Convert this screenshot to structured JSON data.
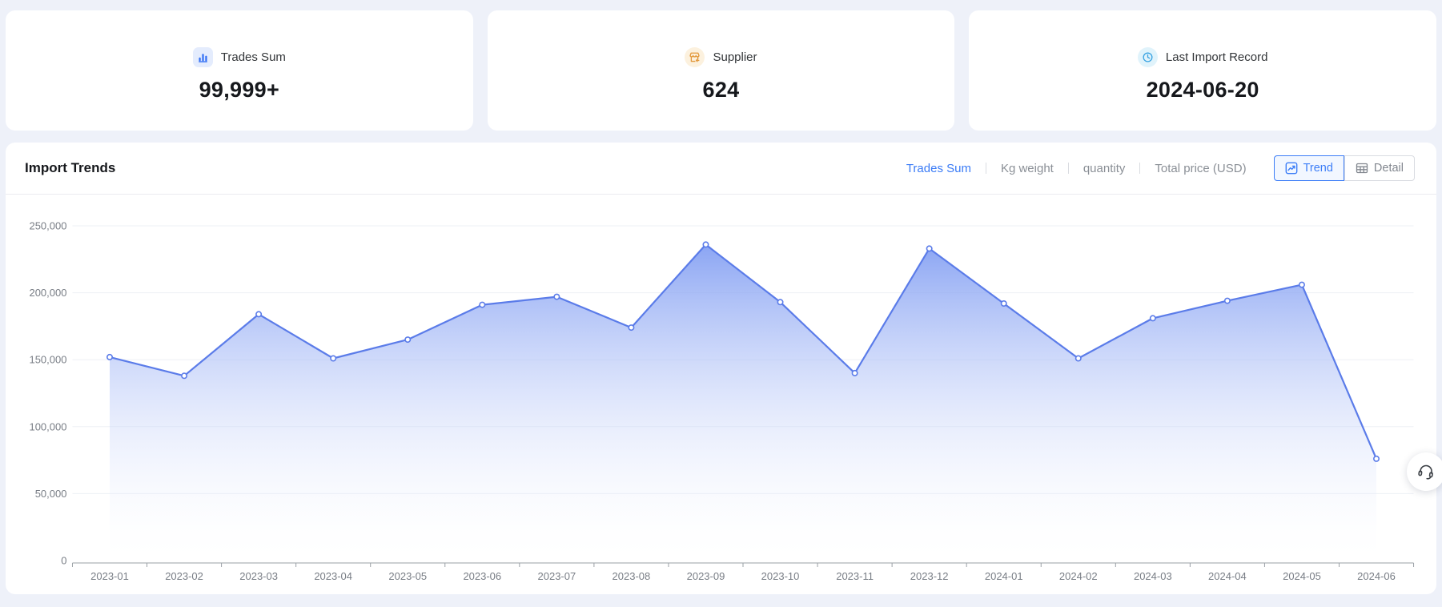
{
  "page": {
    "background": "#eef1f9"
  },
  "cards": [
    {
      "icon": "bar-chart-icon",
      "icon_color": "#3370f5",
      "icon_bg": "#e4ecfd",
      "label": "Trades Sum",
      "value": "99,999+"
    },
    {
      "icon": "storefront-icon",
      "icon_color": "#e2993d",
      "icon_bg": "#fcf1de",
      "label": "Supplier",
      "value": "624"
    },
    {
      "icon": "clock-icon",
      "icon_color": "#39a3e2",
      "icon_bg": "#e0f3fb",
      "label": "Last Import Record",
      "value": "2024-06-20"
    }
  ],
  "panel": {
    "title": "Import Trends",
    "tabs": [
      {
        "label": "Trades Sum",
        "active": true
      },
      {
        "label": "Kg weight",
        "active": false
      },
      {
        "label": "quantity",
        "active": false
      },
      {
        "label": "Total price (USD)",
        "active": false
      }
    ],
    "view_toggle": [
      {
        "label": "Trend",
        "icon": "trend-icon",
        "active": true
      },
      {
        "label": "Detail",
        "icon": "table-icon",
        "active": false
      }
    ]
  },
  "chart_data": {
    "type": "area",
    "title": "Import Trends",
    "series_name": "Trades Sum",
    "x": [
      "2023-01",
      "2023-02",
      "2023-03",
      "2023-04",
      "2023-05",
      "2023-06",
      "2023-07",
      "2023-08",
      "2023-09",
      "2023-10",
      "2023-11",
      "2023-12",
      "2024-01",
      "2024-02",
      "2024-03",
      "2024-04",
      "2024-05",
      "2024-06"
    ],
    "values": [
      152000,
      138000,
      184000,
      151000,
      165000,
      191000,
      197000,
      174000,
      236000,
      193000,
      140000,
      233000,
      192000,
      151000,
      181000,
      194000,
      206000,
      76000
    ],
    "ylim": [
      0,
      250000
    ],
    "ytick_interval": 50000,
    "ytick_labels": [
      "0",
      "50,000",
      "100,000",
      "150,000",
      "200,000",
      "250,000"
    ],
    "grid": "horizontal",
    "legend": "none",
    "line_color": "#5b7ce9",
    "area_top_color": "#7e9bf2",
    "marker_fill": "#ffffff",
    "gridline_color": "#edf0f5",
    "axis_color": "#9aa0a6",
    "tick_label_color": "#787d85"
  },
  "floating": {
    "icon": "headset-icon"
  }
}
